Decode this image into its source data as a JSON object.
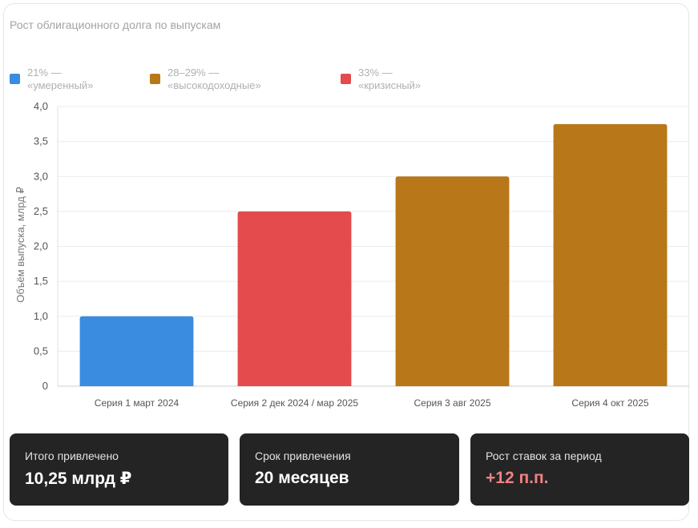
{
  "colors": {
    "moderate": "#3a8ce0",
    "high_yield": "#b87718",
    "crisis": "#e34b4d",
    "accent": "#f08282"
  },
  "chart_data": {
    "type": "bar",
    "title": "Рост облигационного долга по выпускам",
    "ylabel": "Объём выпуска, млрд ₽",
    "xlabel": "",
    "ylim": [
      0,
      4.0
    ],
    "yticks": [
      "0",
      "0,5",
      "1,0",
      "1,5",
      "2,0",
      "2,5",
      "3,0",
      "3,5",
      "4,0"
    ],
    "grid": true,
    "legend_placement": "top-left",
    "legend": [
      {
        "line1": "21% —",
        "line2": "«умеренный»",
        "color": "#3a8ce0"
      },
      {
        "line1": "28–29% —",
        "line2": "«высокодоходные»",
        "color": "#b87718"
      },
      {
        "line1": "33% —",
        "line2": "«кризисный»",
        "color": "#e34b4d"
      }
    ],
    "categories": [
      "Серия 1 март 2024",
      "Серия 2 дек 2024 / мар 2025",
      "Серия 3 авг 2025",
      "Серия 4 окт 2025"
    ],
    "values": [
      1.0,
      2.5,
      3.0,
      3.75
    ],
    "bar_colors": [
      "#3a8ce0",
      "#e34b4d",
      "#b87718",
      "#b87718"
    ]
  },
  "stats": [
    {
      "label": "Итого привлечено",
      "value": "10,25 млрд ₽",
      "accent": false
    },
    {
      "label": "Срок привлечения",
      "value": "20 месяцев",
      "accent": false
    },
    {
      "label": "Рост ставок за период",
      "value": "+12 п.п.",
      "accent": true
    }
  ]
}
